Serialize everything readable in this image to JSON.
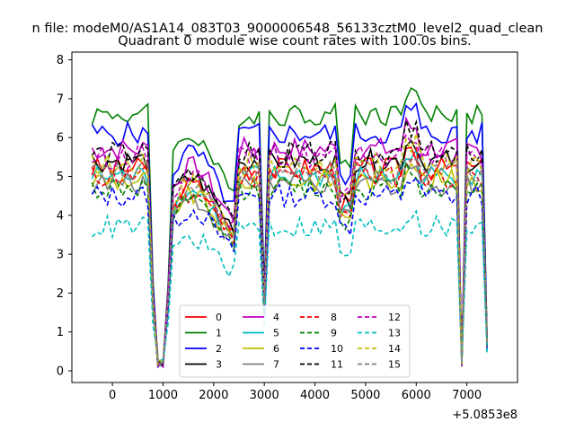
{
  "figure": {
    "suptitle": "n file: modeM0/AS1A14_083T03_9000006548_56133cztM0_level2_quad_clean",
    "title": "Quadrant 0 module wise count rates with 100.0s bins.",
    "offset_label": "+5.0853e8"
  },
  "chart_data": {
    "type": "line",
    "title": "Quadrant 0 module wise count rates with 100.0s bins.",
    "xlabel": "",
    "ylabel": "",
    "x_offset": 508530000,
    "xlim": [
      -800,
      8000
    ],
    "ylim": [
      -0.3,
      8.2
    ],
    "xticks": [
      0,
      1000,
      2000,
      3000,
      4000,
      5000,
      6000,
      7000
    ],
    "xtick_labels": [
      "0",
      "1000",
      "2000",
      "3000",
      "4000",
      "5000",
      "6000",
      "7000"
    ],
    "yticks": [
      0,
      1,
      2,
      3,
      4,
      5,
      6,
      7,
      8
    ],
    "ytick_labels": [
      "0",
      "1",
      "2",
      "3",
      "4",
      "5",
      "6",
      "7",
      "8"
    ],
    "grid": false,
    "legend": {
      "placement": "lower-center",
      "columns": 4
    },
    "x_values_note_segments": "x values per series: -400 to 7450 in 100 s bins",
    "series": [
      {
        "name": "0",
        "color": "#ff0000",
        "dash": "solid",
        "level": 5.2
      },
      {
        "name": "1",
        "color": "#008000",
        "dash": "solid",
        "level": 6.6
      },
      {
        "name": "2",
        "color": "#0000ff",
        "dash": "solid",
        "level": 6.1
      },
      {
        "name": "3",
        "color": "#000000",
        "dash": "solid",
        "level": 5.4
      },
      {
        "name": "4",
        "color": "#bf00bf",
        "dash": "solid",
        "level": 5.7
      },
      {
        "name": "5",
        "color": "#00bfbf",
        "dash": "solid",
        "level": 5.0
      },
      {
        "name": "6",
        "color": "#bfbf00",
        "dash": "solid",
        "level": 4.9
      },
      {
        "name": "7",
        "color": "#808080",
        "dash": "solid",
        "level": 4.8
      },
      {
        "name": "8",
        "color": "#ff0000",
        "dash": "dashed",
        "level": 5.0
      },
      {
        "name": "9",
        "color": "#008000",
        "dash": "dashed",
        "level": 4.7
      },
      {
        "name": "10",
        "color": "#0000ff",
        "dash": "dashed",
        "level": 4.5
      },
      {
        "name": "11",
        "color": "#000000",
        "dash": "dashed",
        "level": 5.6
      },
      {
        "name": "12",
        "color": "#bf00bf",
        "dash": "dashed",
        "level": 5.5
      },
      {
        "name": "13",
        "color": "#00bfbf",
        "dash": "dashed",
        "level": 3.7
      },
      {
        "name": "14",
        "color": "#bfbf00",
        "dash": "dashed",
        "level": 5.3
      },
      {
        "name": "15",
        "color": "#808080",
        "dash": "dashed",
        "level": 5.1
      }
    ]
  }
}
